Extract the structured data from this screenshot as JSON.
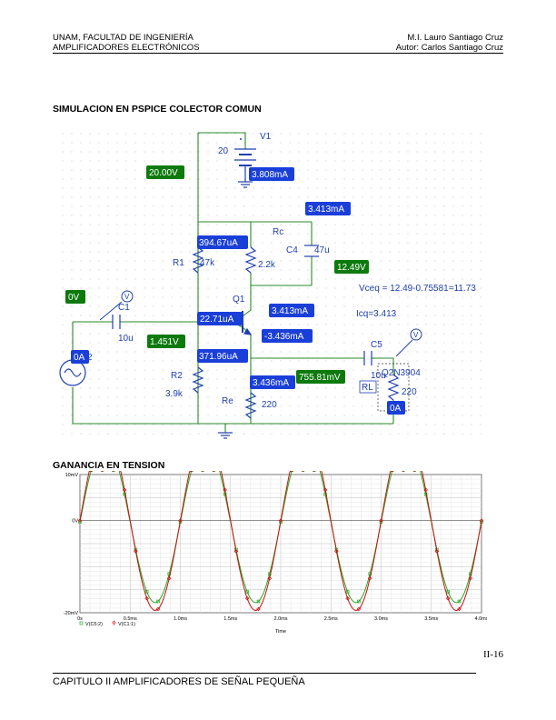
{
  "header": {
    "left_line1": "UNAM, FACULTAD DE INGENIERÍA",
    "left_line2": "AMPLIFICADORES ELECTRÓNICOS",
    "right_line1": "M.I. Lauro Santiago Cruz",
    "right_line2": "Autor: Carlos Santiago Cruz"
  },
  "section1_title": "SIMULACION EN PSPICE COLECTOR COMUN",
  "schematic": {
    "components": {
      "V1": "V1",
      "V1_value": "20",
      "Rc": "Rc",
      "Rc_value": "2.2k",
      "C4": "C4",
      "C4_value": "47u",
      "R1": "R1",
      "R1_value": "47k",
      "Q1": "Q1",
      "Q1_model": "Q2N3904",
      "C1": "C1",
      "C1_value": "10u",
      "R2": "R2",
      "R2_value": "3.9k",
      "Re": "Re",
      "Re_value": "220",
      "C5": "C5",
      "C5_value": "10u",
      "RL": "RL",
      "RL_value": "220",
      "source_node": "2",
      "probe_symbol": "V"
    },
    "annotations": {
      "vceq": "Vceq = 12.49-0.75581=11.73",
      "icq": "Icq=3.413"
    },
    "current_badges": {
      "supply": "3.808mA",
      "rc_top": "3.413mA",
      "r1": "394.67uA",
      "base": "22.71uA",
      "collector": "3.413mA",
      "emitter": "-3.436mA",
      "r2": "371.96uA",
      "re": "3.436mA",
      "source": "0A",
      "load": "0A"
    },
    "voltage_badges": {
      "vcc": "20.00V",
      "collector": "12.49V",
      "input": "0V",
      "base": "1.451V",
      "emitter": "755.81mV"
    }
  },
  "section2_title": "GANANCIA EN TENSION",
  "chart_data": {
    "type": "line",
    "title": "",
    "xlabel": "Time",
    "ylabel": "",
    "x_unit": "ms",
    "xlim": [
      0,
      4.0
    ],
    "ylim": [
      -20,
      10
    ],
    "y_unit": "mV",
    "x_ticks": [
      "0s",
      "0.5ms",
      "1.0ms",
      "1.5ms",
      "2.0ms",
      "2.5ms",
      "3.0ms",
      "3.5ms",
      "4.0ms"
    ],
    "y_ticks": [
      "10mV",
      "0V",
      "-20mV"
    ],
    "y_tick_values": [
      10,
      0,
      -20
    ],
    "grid": true,
    "legend_position": "bottom-left",
    "series": [
      {
        "name": "V(C5:2)",
        "color": "#22aa22",
        "marker": "square",
        "frequency_khz": 1,
        "amplitude_mv": 17.5,
        "offset_mv": -0.3
      },
      {
        "name": "V(C1:1)",
        "color": "#cc1111",
        "marker": "diamond",
        "frequency_khz": 1,
        "amplitude_mv": 19.5,
        "offset_mv": 0
      }
    ]
  },
  "page_number": "II-16",
  "footer": "CAPITULO II AMPLIFICADORES DE SEÑAL PEQUEÑA"
}
